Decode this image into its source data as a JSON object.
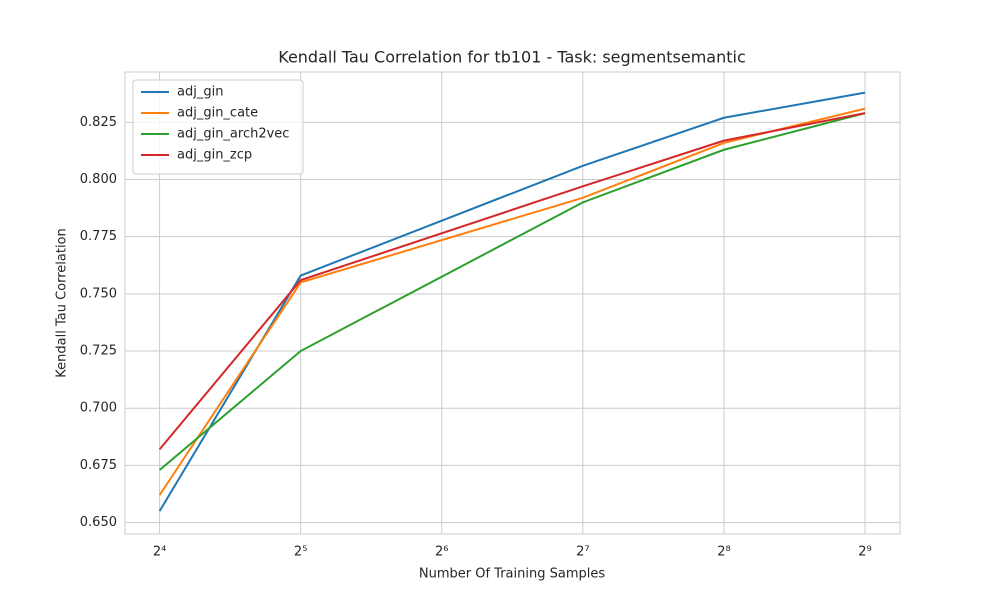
{
  "chart_data": {
    "type": "line",
    "title": "Kendall Tau Correlation for tb101 - Task: segmentsemantic",
    "x_label": "Number Of Training Samples",
    "y_label": "Kendall Tau Correlation",
    "x": [
      16,
      32,
      128,
      256,
      512
    ],
    "series": [
      {
        "name": "adj_gin",
        "color": "#1f77b4",
        "values": [
          0.655,
          0.758,
          0.806,
          0.827,
          0.838
        ]
      },
      {
        "name": "adj_gin_cate",
        "color": "#ff7f0e",
        "values": [
          0.662,
          0.755,
          0.792,
          0.816,
          0.831
        ]
      },
      {
        "name": "adj_gin_arch2vec",
        "color": "#2ca02c",
        "values": [
          0.673,
          0.725,
          0.79,
          0.813,
          0.829
        ]
      },
      {
        "name": "adj_gin_zcp",
        "color": "#d62728",
        "values": [
          0.682,
          0.756,
          0.797,
          0.817,
          0.829
        ]
      }
    ],
    "x_log_base": 2,
    "xlim": [
      13.5,
      608
    ],
    "xticks": [
      {
        "value": 16,
        "label": "2⁴"
      },
      {
        "value": 32,
        "label": "2⁵"
      },
      {
        "value": 64,
        "label": "2⁶"
      },
      {
        "value": 128,
        "label": "2⁷"
      },
      {
        "value": 256,
        "label": "2⁸"
      },
      {
        "value": 512,
        "label": "2⁹"
      }
    ],
    "ylim": [
      0.645,
      0.847
    ],
    "yticks": [
      {
        "value": 0.65,
        "label": "0.650"
      },
      0.675,
      {
        "value": 0.7,
        "label": "0.700"
      },
      0.725,
      {
        "value": 0.75,
        "label": "0.750"
      },
      0.775,
      {
        "value": 0.8,
        "label": "0.800"
      },
      0.825
    ],
    "grid": true,
    "legend": "upper-left"
  }
}
